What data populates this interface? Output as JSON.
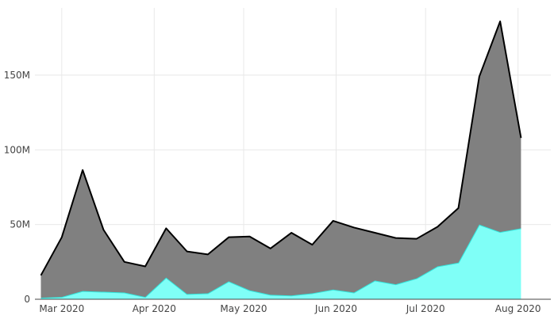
{
  "chart_data": {
    "type": "area",
    "stacked": true,
    "grid": true,
    "legend": "none",
    "xlim": [
      "2020-02-21",
      "2020-08-12"
    ],
    "ylim": [
      0,
      195000000
    ],
    "x_ticks": [
      {
        "date": "2020-03-01",
        "label": "Mar 2020"
      },
      {
        "date": "2020-04-01",
        "label": "Apr 2020"
      },
      {
        "date": "2020-05-01",
        "label": "May 2020"
      },
      {
        "date": "2020-06-01",
        "label": "Jun 2020"
      },
      {
        "date": "2020-07-01",
        "label": "Jul 2020"
      },
      {
        "date": "2020-08-01",
        "label": "Aug 2020"
      }
    ],
    "y_ticks": [
      {
        "value": 0,
        "label": "0"
      },
      {
        "value": 50000000,
        "label": "50M"
      },
      {
        "value": 100000000,
        "label": "100M"
      },
      {
        "value": 150000000,
        "label": "150M"
      }
    ],
    "x": [
      "2020-02-23",
      "2020-03-01",
      "2020-03-08",
      "2020-03-15",
      "2020-03-22",
      "2020-03-29",
      "2020-04-05",
      "2020-04-12",
      "2020-04-19",
      "2020-04-26",
      "2020-05-03",
      "2020-05-10",
      "2020-05-17",
      "2020-05-24",
      "2020-05-31",
      "2020-06-07",
      "2020-06-14",
      "2020-06-21",
      "2020-06-28",
      "2020-07-05",
      "2020-07-12",
      "2020-07-19",
      "2020-07-26",
      "2020-08-02"
    ],
    "series": [
      {
        "color": "#7ffff7",
        "line_color": "#33e6dd",
        "values": [
          1000000,
          1500000,
          5500000,
          5000000,
          4500000,
          1500000,
          14500000,
          3500000,
          4000000,
          12000000,
          6000000,
          3000000,
          2500000,
          4000000,
          6500000,
          4500000,
          12500000,
          10000000,
          14000000,
          22000000,
          24500000,
          50000000,
          45000000,
          47500000
        ]
      },
      {
        "color": "#808080",
        "line_color": "#000000",
        "values": [
          15000000,
          40000000,
          81000000,
          41500000,
          20500000,
          20500000,
          33000000,
          28500000,
          26000000,
          29500000,
          36000000,
          31000000,
          42000000,
          32500000,
          46000000,
          43500000,
          32000000,
          31000000,
          26500000,
          26500000,
          36500000,
          99000000,
          141000000,
          60500000
        ]
      }
    ]
  }
}
